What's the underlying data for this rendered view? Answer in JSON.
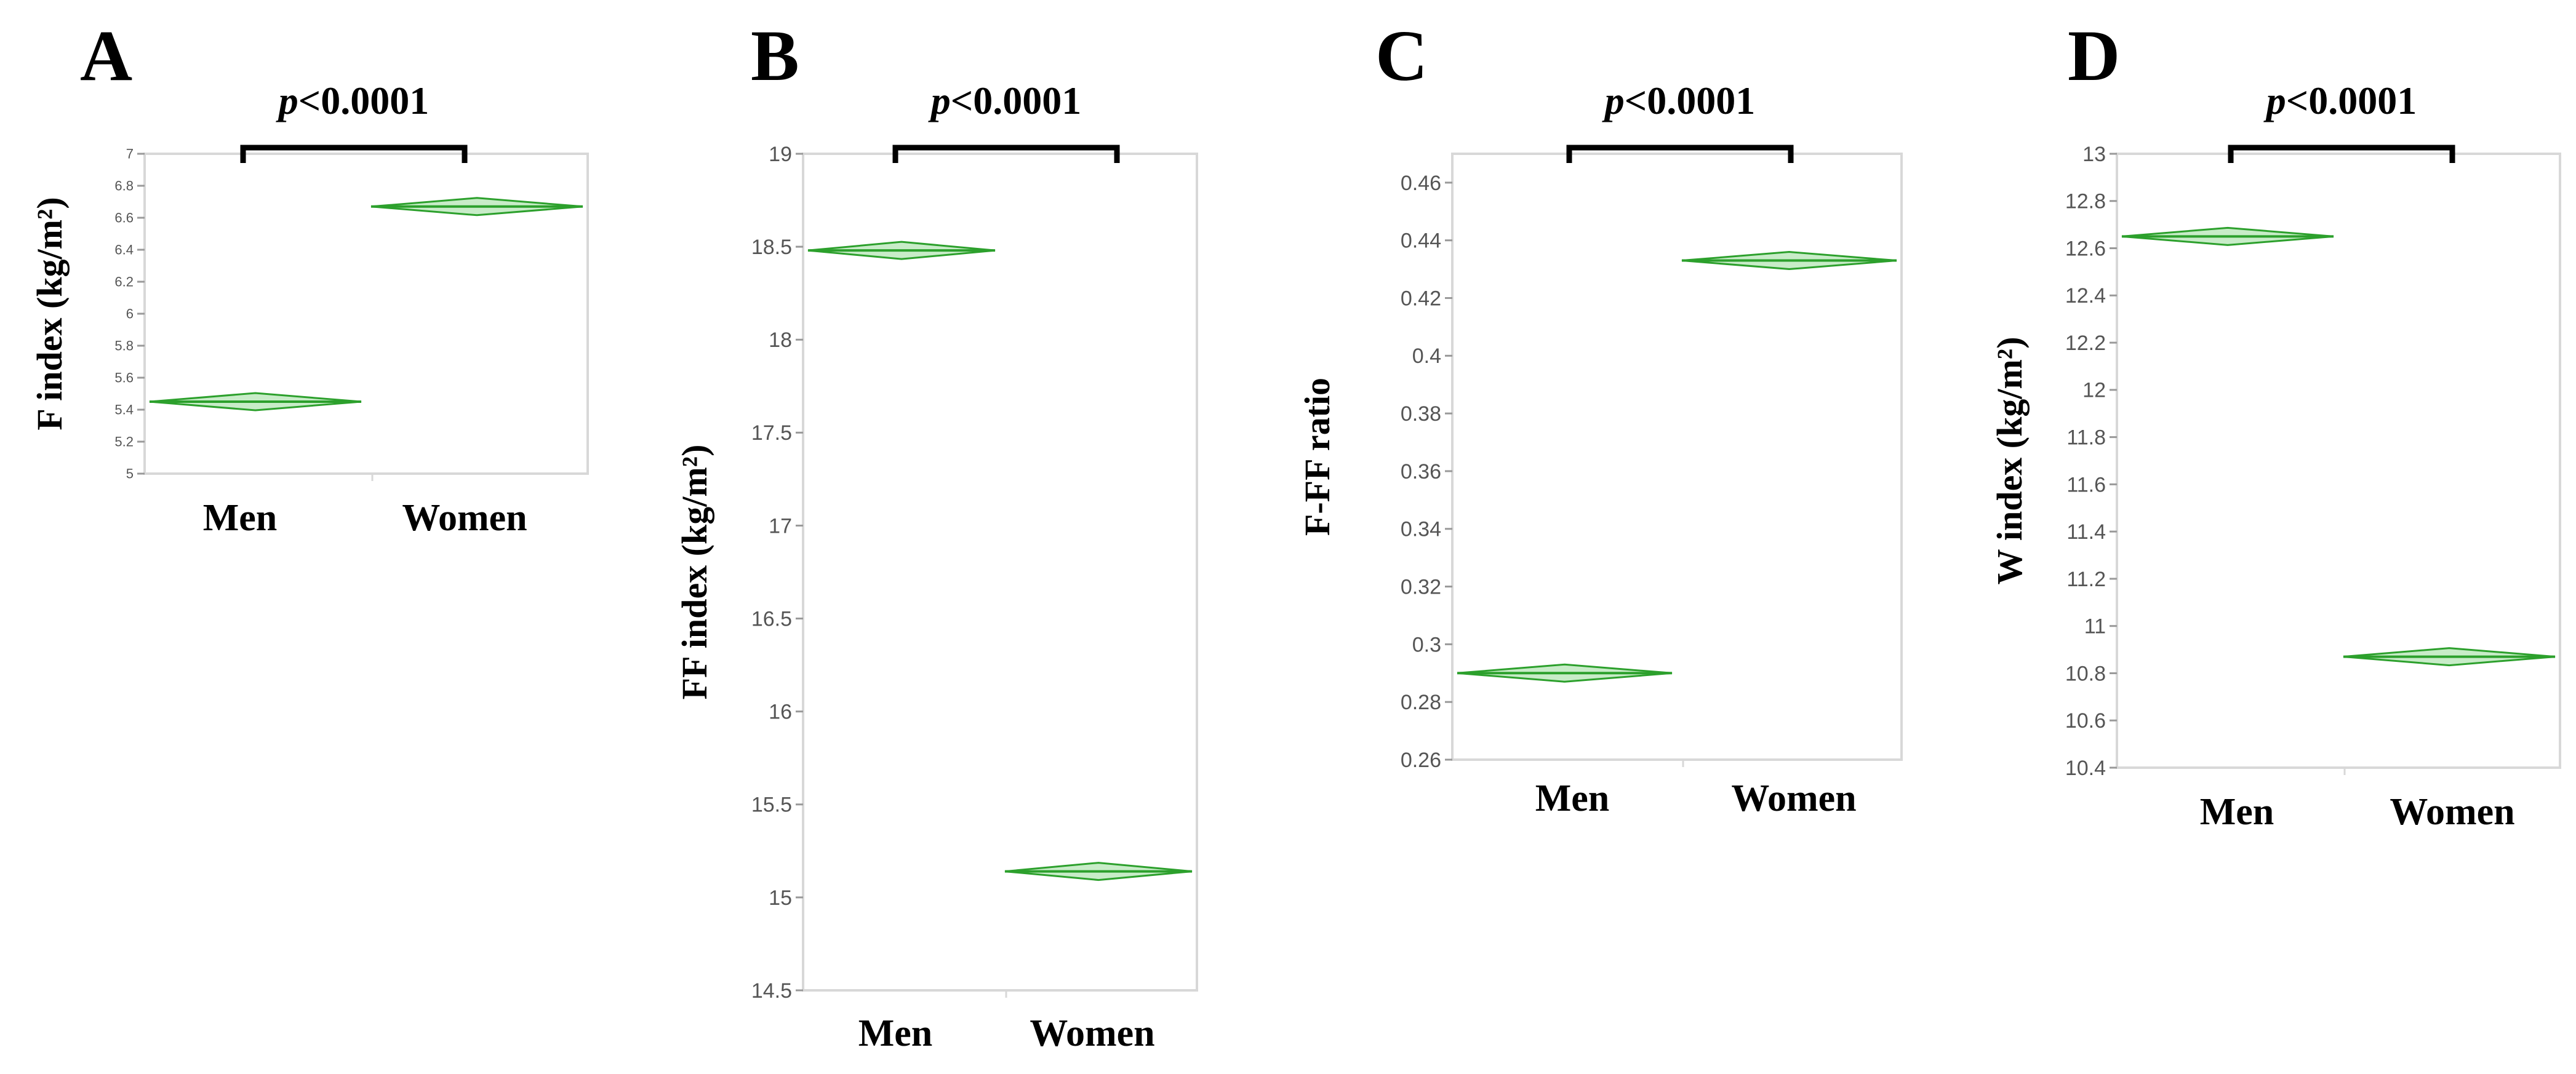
{
  "colors": {
    "mark": "#2ca02c",
    "mark_fill": "#c8ecc8",
    "frame": "#d8d8d8",
    "grid": "#f1f1f1",
    "text": "#000000",
    "tick_text": "#555555"
  },
  "chart_data": [
    {
      "panel_label": "A",
      "type": "diamond",
      "title": "p<0.0001",
      "p_value": {
        "italic": "p",
        "rest": "<0.0001"
      },
      "ylabel": "F index (kg/m²)",
      "categories": [
        "Men",
        "Women"
      ],
      "means": [
        5.45,
        6.67
      ],
      "ylim": [
        5,
        7
      ],
      "yticks": [
        5,
        5.2,
        5.4,
        5.6,
        5.8,
        6,
        6.2,
        6.4,
        6.6,
        6.8,
        7
      ],
      "ytick_labels": [
        "5",
        "5.2",
        "5.4",
        "5.6",
        "5.8",
        "6",
        "6.2",
        "6.4",
        "6.6",
        "6.8",
        "7"
      ]
    },
    {
      "panel_label": "B",
      "type": "diamond",
      "title": "p<0.0001",
      "p_value": {
        "italic": "p",
        "rest": "<0.0001"
      },
      "ylabel": "FF index (kg/m²)",
      "categories": [
        "Men",
        "Women"
      ],
      "means": [
        18.48,
        15.14
      ],
      "ylim": [
        14.5,
        19
      ],
      "yticks": [
        14.5,
        15,
        15.5,
        16,
        16.5,
        17,
        17.5,
        18,
        18.5,
        19
      ],
      "ytick_labels": [
        "14.5",
        "15",
        "15.5",
        "16",
        "16.5",
        "17",
        "17.5",
        "18",
        "18.5",
        "19"
      ]
    },
    {
      "panel_label": "C",
      "type": "diamond",
      "title": "p<0.0001",
      "p_value": {
        "italic": "p",
        "rest": "<0.0001"
      },
      "ylabel": "F-FF ratio",
      "categories": [
        "Men",
        "Women"
      ],
      "means": [
        0.29,
        0.433
      ],
      "ylim": [
        0.26,
        0.47
      ],
      "yticks": [
        0.26,
        0.28,
        0.3,
        0.32,
        0.34,
        0.36,
        0.38,
        0.4,
        0.42,
        0.44,
        0.46
      ],
      "ytick_labels": [
        "0.26",
        "0.28",
        "0.3",
        "0.32",
        "0.34",
        "0.36",
        "0.38",
        "0.4",
        "0.42",
        "0.44",
        "0.46"
      ]
    },
    {
      "panel_label": "D",
      "type": "diamond",
      "title": "p<0.0001",
      "p_value": {
        "italic": "p",
        "rest": "<0.0001"
      },
      "ylabel": "W index (kg/m²)",
      "categories": [
        "Men",
        "Women"
      ],
      "means": [
        12.65,
        10.87
      ],
      "ylim": [
        10.4,
        13
      ],
      "yticks": [
        10.4,
        10.6,
        10.8,
        11,
        11.2,
        11.4,
        11.6,
        11.8,
        12,
        12.2,
        12.4,
        12.6,
        12.8,
        13
      ],
      "ytick_labels": [
        "10.4",
        "10.6",
        "10.8",
        "11",
        "11.2",
        "11.4",
        "11.6",
        "11.8",
        "12",
        "12.2",
        "12.4",
        "12.6",
        "12.8",
        "13"
      ]
    }
  ]
}
